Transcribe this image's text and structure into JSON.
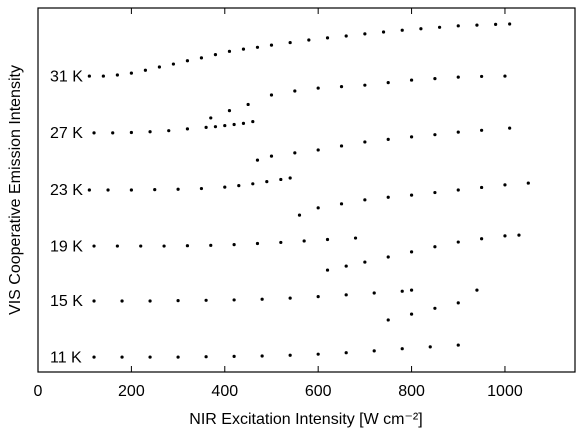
{
  "chart_data": {
    "type": "scatter",
    "x_label": "NIR Excitation Intensity [W cm⁻²]",
    "y_label": "VIS Cooperative Emission Intensity",
    "xlim": [
      0,
      1150
    ],
    "xticks": [
      0,
      200,
      400,
      600,
      800,
      1000
    ],
    "ylim": [
      0,
      100
    ],
    "grid": false,
    "series": [
      {
        "name": "31 K",
        "color": "#000000",
        "x": [
          110,
          140,
          170,
          200,
          230,
          260,
          290,
          320,
          350,
          380,
          410,
          440,
          470,
          500,
          540,
          580,
          620,
          660,
          700,
          740,
          780,
          820,
          860,
          900,
          940,
          980,
          1010
        ],
        "values": [
          81.3,
          81.3,
          81.6,
          82.1,
          82.9,
          83.8,
          84.6,
          85.5,
          86.3,
          87.2,
          88.1,
          88.7,
          89.2,
          89.8,
          90.5,
          91.2,
          91.8,
          92.3,
          92.9,
          93.4,
          93.9,
          94.3,
          94.7,
          95.1,
          95.3,
          95.5,
          95.6
        ]
      },
      {
        "name": "27 K",
        "color": "#000000",
        "x": [
          120,
          160,
          200,
          240,
          280,
          320,
          360,
          380,
          400,
          420,
          440,
          460,
          370,
          410,
          450,
          500,
          550,
          600,
          650,
          700,
          750,
          800,
          850,
          900,
          950,
          1000
        ],
        "values": [
          65.7,
          65.7,
          65.8,
          66.0,
          66.3,
          66.8,
          67.2,
          67.4,
          67.7,
          68.0,
          68.3,
          68.8,
          69.8,
          71.8,
          73.5,
          76.1,
          77.2,
          78.0,
          78.4,
          78.8,
          79.5,
          80.2,
          80.6,
          81.0,
          81.2,
          81.3
        ]
      },
      {
        "name": "23 K",
        "color": "#000000",
        "x": [
          110,
          150,
          200,
          250,
          300,
          350,
          400,
          430,
          460,
          490,
          520,
          540,
          470,
          500,
          550,
          600,
          650,
          700,
          750,
          800,
          850,
          900,
          950,
          1010
        ],
        "values": [
          50.0,
          50.0,
          50.0,
          50.1,
          50.2,
          50.4,
          50.8,
          51.2,
          51.7,
          52.3,
          52.9,
          53.3,
          58.2,
          59.3,
          60.2,
          61.0,
          62.1,
          63.2,
          63.9,
          64.6,
          65.2,
          65.9,
          66.4,
          67.0
        ]
      },
      {
        "name": "19 K",
        "color": "#000000",
        "x": [
          120,
          170,
          220,
          270,
          320,
          370,
          420,
          470,
          520,
          570,
          620,
          680,
          560,
          600,
          650,
          700,
          750,
          800,
          850,
          900,
          950,
          1000,
          1050
        ],
        "values": [
          34.6,
          34.6,
          34.6,
          34.6,
          34.7,
          34.8,
          35.0,
          35.3,
          35.6,
          36.0,
          36.4,
          36.8,
          43.1,
          45.1,
          46.2,
          47.3,
          48.0,
          48.6,
          49.3,
          50.0,
          50.7,
          51.4,
          51.9
        ]
      },
      {
        "name": "15 K",
        "color": "#000000",
        "x": [
          120,
          180,
          240,
          300,
          360,
          420,
          480,
          540,
          600,
          660,
          720,
          780,
          800,
          620,
          660,
          700,
          750,
          800,
          850,
          900,
          950,
          1000,
          1030
        ],
        "values": [
          19.5,
          19.5,
          19.5,
          19.6,
          19.7,
          19.8,
          20.0,
          20.3,
          20.7,
          21.2,
          21.7,
          22.2,
          22.5,
          28.0,
          29.1,
          30.2,
          31.6,
          33.0,
          34.4,
          35.7,
          36.6,
          37.4,
          37.6
        ]
      },
      {
        "name": "11 K",
        "color": "#000000",
        "x": [
          120,
          180,
          240,
          300,
          360,
          420,
          480,
          540,
          600,
          660,
          720,
          780,
          840,
          900,
          750,
          800,
          850,
          900,
          940
        ],
        "values": [
          4.1,
          4.1,
          4.1,
          4.1,
          4.2,
          4.3,
          4.4,
          4.6,
          4.9,
          5.3,
          5.8,
          6.4,
          6.9,
          7.4,
          14.3,
          15.9,
          17.5,
          19.0,
          22.5
        ]
      }
    ]
  }
}
